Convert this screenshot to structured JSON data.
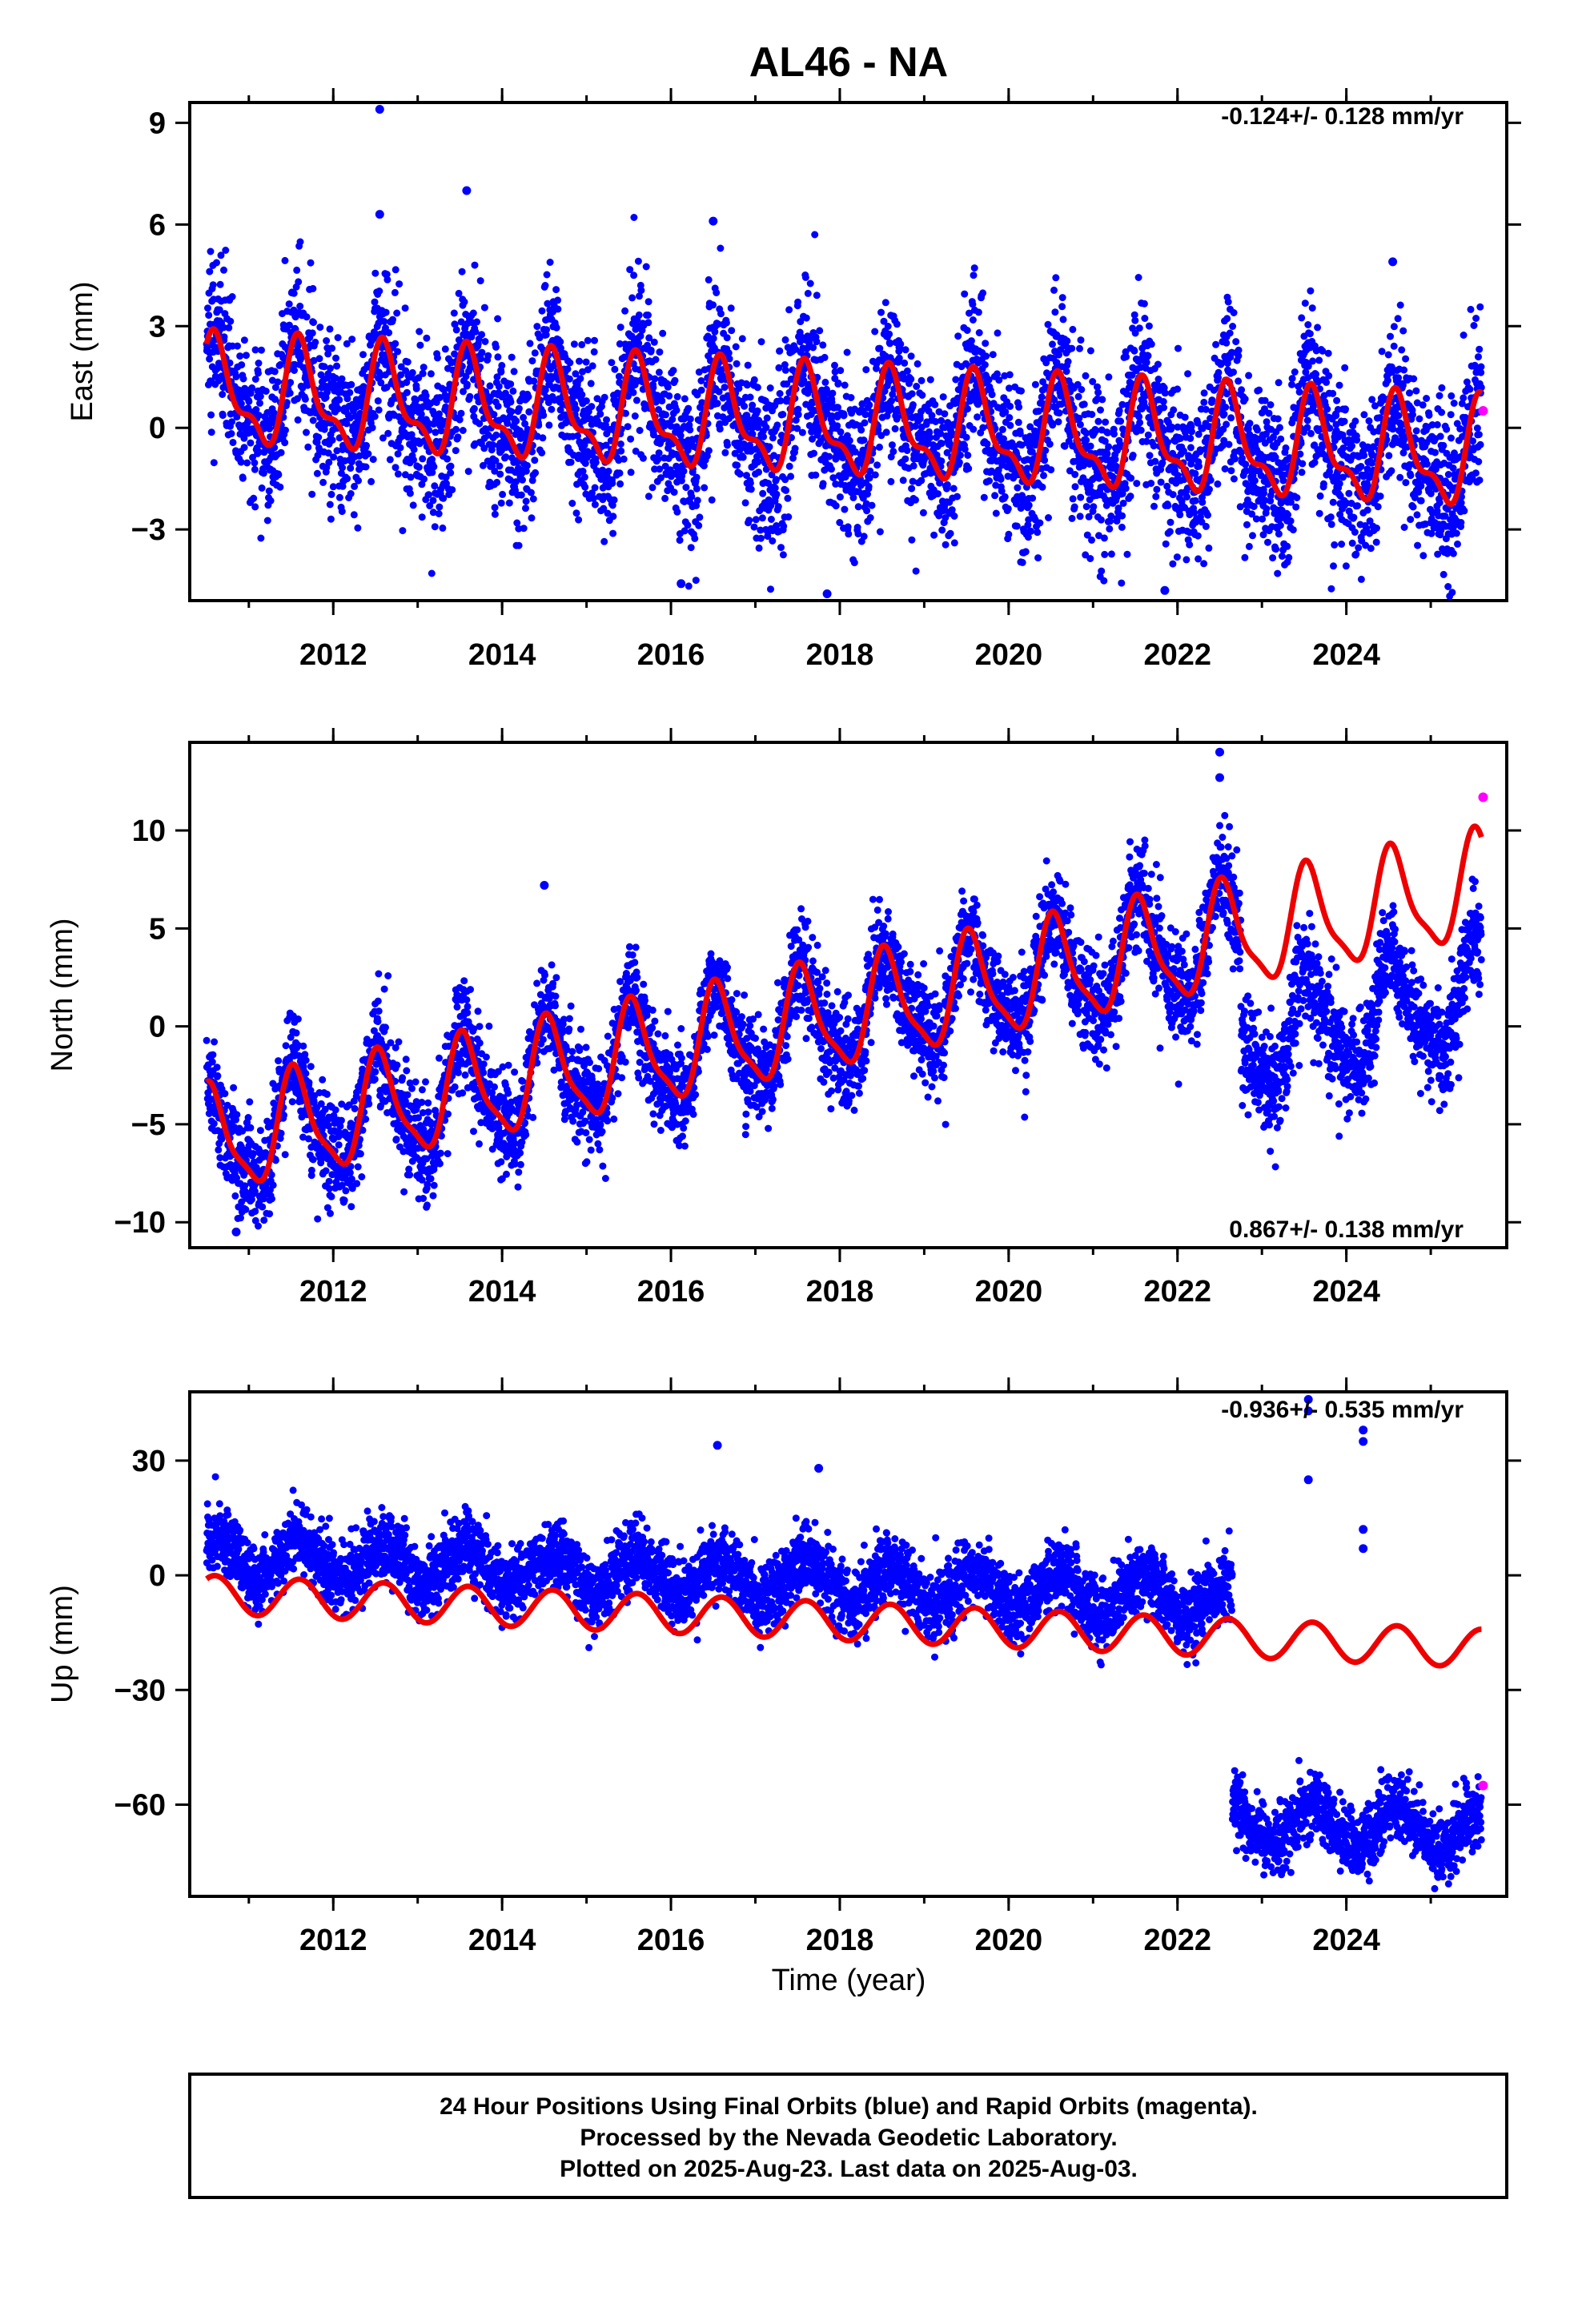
{
  "title": "AL46 - NA",
  "colors": {
    "final_orbits": "#0000ff",
    "rapid_orbits": "#ff00ff",
    "model": "#ee0000",
    "frame": "#000000"
  },
  "xlabel": "Time (year)",
  "footer": {
    "line1": "24 Hour Positions Using Final Orbits (blue) and Rapid Orbits (magenta).",
    "line2": "Processed by the Nevada Geodetic Laboratory.",
    "line3": "Plotted on 2025-Aug-23. Last data on 2025-Aug-03."
  },
  "chart_data": [
    {
      "type": "scatter",
      "ylabel": "East (mm)",
      "rate_label": "-0.124+/- 0.128 mm/yr",
      "xlim": [
        2010.3,
        2025.9
      ],
      "ylim": [
        -5.1,
        9.6
      ],
      "xticks": [
        2012,
        2014,
        2016,
        2018,
        2020,
        2022,
        2024
      ],
      "yticks": [
        -3,
        0,
        3,
        6,
        9
      ],
      "grid": false,
      "model": {
        "offset": 1.0,
        "slope_mm_per_yr": -0.124,
        "annual_amp": 1.4,
        "semiannual_amp": 0.6,
        "peak_phase_yr": 0.62,
        "breaks": []
      },
      "final_orbits": {
        "start": 2010.5,
        "end": 2025.6,
        "spread": 1.2,
        "outliers": [
          [
            2012.55,
            9.4
          ],
          [
            2012.55,
            6.3
          ],
          [
            2013.58,
            7.0
          ],
          [
            2016.5,
            6.1
          ],
          [
            2016.12,
            -4.6
          ],
          [
            2017.85,
            -4.9
          ],
          [
            2021.85,
            -4.8
          ],
          [
            2024.55,
            4.9
          ]
        ]
      },
      "rapid_orbits": [
        [
          2025.62,
          0.5
        ]
      ]
    },
    {
      "type": "scatter",
      "ylabel": "North (mm)",
      "rate_label": "0.867+/- 0.138 mm/yr",
      "xlim": [
        2010.3,
        2025.9
      ],
      "ylim": [
        -11.3,
        14.5
      ],
      "xticks": [
        2012,
        2014,
        2016,
        2018,
        2020,
        2022,
        2024
      ],
      "yticks": [
        -10,
        -5,
        0,
        5,
        10
      ],
      "grid": false,
      "model": {
        "offset": -6.0,
        "slope_mm_per_yr": 0.867,
        "annual_amp": 2.6,
        "semiannual_amp": 0.7,
        "peak_phase_yr": 0.55,
        "breaks": []
      },
      "final_orbits": {
        "start": 2010.5,
        "end": 2025.6,
        "spread": 1.3,
        "breaks": [
          {
            "year": 2022.75,
            "offset": -5.5
          }
        ],
        "outliers": [
          [
            2022.5,
            14.0
          ],
          [
            2022.5,
            12.7
          ],
          [
            2010.85,
            -10.5
          ],
          [
            2014.5,
            7.2
          ]
        ]
      },
      "rapid_orbits": [
        [
          2025.62,
          11.7
        ]
      ]
    },
    {
      "type": "scatter",
      "ylabel": "Up (mm)",
      "rate_label": "-0.936+/- 0.535 mm/yr",
      "xlim": [
        2010.3,
        2025.9
      ],
      "ylim": [
        -84,
        48
      ],
      "xticks": [
        2012,
        2014,
        2016,
        2018,
        2020,
        2022,
        2024
      ],
      "yticks": [
        -60,
        -30,
        0,
        30
      ],
      "grid": false,
      "model": {
        "offset": -5.0,
        "slope_mm_per_yr": -0.936,
        "annual_amp": 5.0,
        "semiannual_amp": 0.0,
        "peak_phase_yr": 0.6,
        "breaks": []
      },
      "final_orbits": {
        "start": 2010.5,
        "end": 2025.6,
        "data_offset": 10.0,
        "spread": 4.5,
        "breaks": [
          {
            "year": 2022.65,
            "offset": -58.0
          }
        ],
        "outliers": [
          [
            2023.55,
            46.0
          ],
          [
            2023.55,
            43.0
          ],
          [
            2023.55,
            25.0
          ],
          [
            2024.2,
            38.0
          ],
          [
            2024.2,
            35.0
          ],
          [
            2024.2,
            12.0
          ],
          [
            2024.2,
            7.0
          ],
          [
            2016.55,
            34.0
          ],
          [
            2017.75,
            28.0
          ]
        ]
      },
      "rapid_orbits": [
        [
          2025.62,
          -55.0
        ]
      ]
    }
  ]
}
